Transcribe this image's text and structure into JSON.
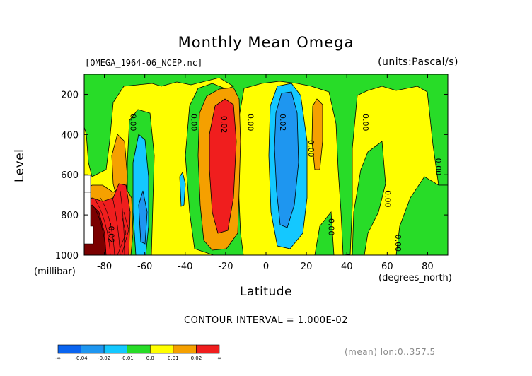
{
  "chart_data": {
    "type": "heatmap",
    "title": "Monthly Mean Omega",
    "subtitle_left": "[OMEGA_1964-06_NCEP.nc]",
    "subtitle_right": "(units:Pascal/s)",
    "xlabel": "Latitude",
    "xunits": "(degrees_north)",
    "ylabel": "Level",
    "yunits": "(millibar)",
    "xlim": [
      -90,
      90
    ],
    "ylim": [
      1000,
      100
    ],
    "x_ticks": [
      "-80",
      "-60",
      "-40",
      "-20",
      "0",
      "20",
      "40",
      "60",
      "80"
    ],
    "x_tick_values": [
      -80,
      -60,
      -40,
      -20,
      0,
      20,
      40,
      60,
      80
    ],
    "y_ticks": [
      "200",
      "400",
      "600",
      "800",
      "1000"
    ],
    "y_tick_values": [
      200,
      400,
      600,
      800,
      1000
    ],
    "contour_interval": "CONTOUR INTERVAL = 1.000E-02",
    "footnote": "(mean) lon:0..357.5",
    "colorbar": {
      "labels": [
        "-∞",
        "-0.04",
        "-0.02",
        "-0.01",
        "0.0",
        "0.01",
        "0.02",
        "∞"
      ],
      "colors": [
        "#0a64f0",
        "#1e96f0",
        "#14c8ff",
        "#28dc28",
        "#ffff00",
        "#f5a000",
        "#f01e1e"
      ]
    },
    "contour_labels": [
      {
        "text": "0.00",
        "lat": -67,
        "lev": 340
      },
      {
        "text": "0.00",
        "lat": -37,
        "lev": 340
      },
      {
        "text": "0.02",
        "lat": -22,
        "lev": 350
      },
      {
        "text": "0.00",
        "lat": -9,
        "lev": 340
      },
      {
        "text": "0.02",
        "lat": 7,
        "lev": 340
      },
      {
        "text": "0.00",
        "lat": 21,
        "lev": 470
      },
      {
        "text": "0.00",
        "lat": 48,
        "lev": 340
      },
      {
        "text": "0.00",
        "lat": 84,
        "lev": 560
      },
      {
        "text": "0.00",
        "lat": 59,
        "lev": 720
      },
      {
        "text": "0.00",
        "lat": 31,
        "lev": 860
      },
      {
        "text": "0.00",
        "lat": 64,
        "lev": 940
      },
      {
        "text": "-0.02",
        "lat": -78,
        "lev": 890
      }
    ]
  }
}
